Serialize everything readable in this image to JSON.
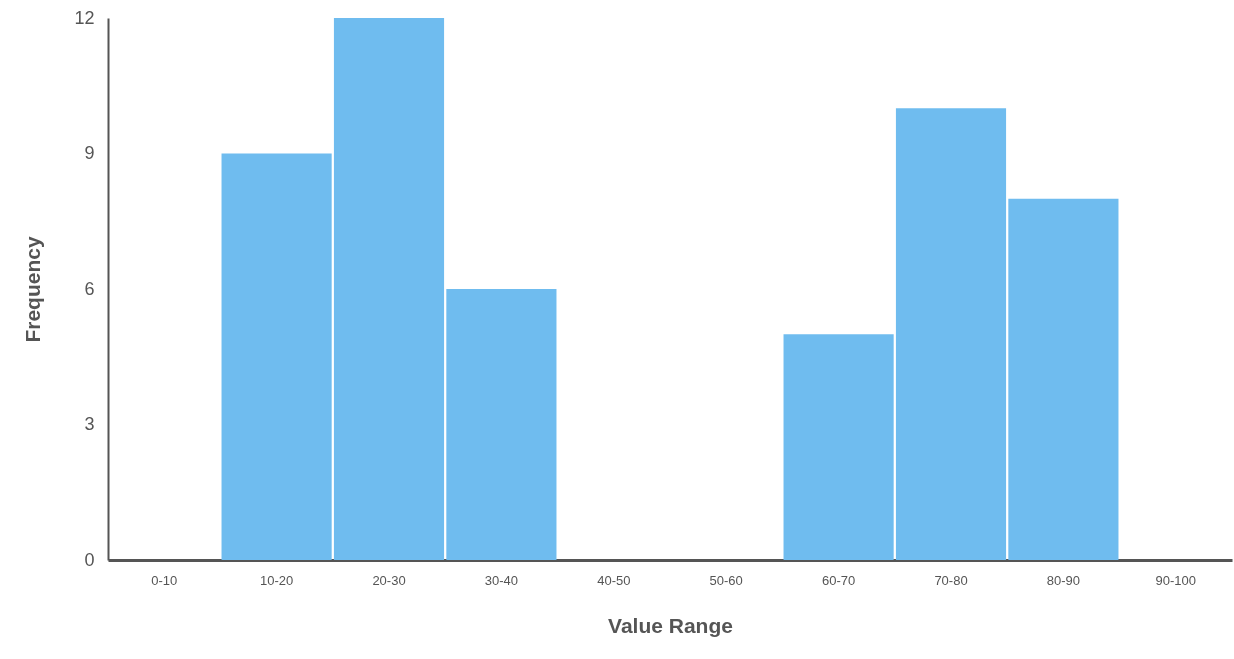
{
  "chart_data": {
    "type": "bar",
    "xlabel": "Value Range",
    "ylabel": "Frequency",
    "categories": [
      "0-10",
      "10-20",
      "20-30",
      "30-40",
      "40-50",
      "50-60",
      "60-70",
      "70-80",
      "80-90",
      "90-100"
    ],
    "values": [
      0,
      9,
      12,
      6,
      0,
      0,
      5,
      10,
      8,
      0
    ],
    "color": "#6fbcef",
    "ylim": [
      0,
      12
    ],
    "yticks": [
      0,
      3,
      6,
      9,
      12
    ],
    "grid": false
  }
}
